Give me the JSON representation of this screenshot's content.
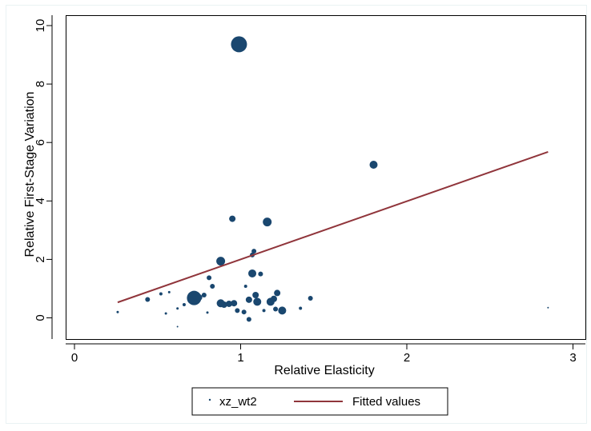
{
  "chart_data": {
    "type": "scatter",
    "xlabel": "Relative Elasticity",
    "ylabel": "Relative First-Stage Variation",
    "xlim": [
      -0.05,
      3.05
    ],
    "ylim": [
      -0.35,
      10.3
    ],
    "xticks": [
      0,
      1,
      2,
      3
    ],
    "yticks": [
      0,
      2,
      4,
      6,
      8,
      10
    ],
    "grid": "horizontal-none",
    "legend_position": "bottom",
    "series": [
      {
        "name": "xz_wt2",
        "kind": "scatter",
        "color": "#1a476f",
        "points": [
          {
            "x": 0.99,
            "y": 9.36,
            "w": 10
          },
          {
            "x": 1.8,
            "y": 5.24,
            "w": 5
          },
          {
            "x": 0.95,
            "y": 3.39,
            "w": 4
          },
          {
            "x": 1.16,
            "y": 3.28,
            "w": 5.5
          },
          {
            "x": 0.88,
            "y": 1.94,
            "w": 5.5
          },
          {
            "x": 1.08,
            "y": 2.28,
            "w": 3
          },
          {
            "x": 1.07,
            "y": 2.15,
            "w": 3
          },
          {
            "x": 1.07,
            "y": 1.52,
            "w": 5
          },
          {
            "x": 1.12,
            "y": 1.5,
            "w": 3
          },
          {
            "x": 0.81,
            "y": 1.37,
            "w": 3
          },
          {
            "x": 0.83,
            "y": 1.08,
            "w": 3
          },
          {
            "x": 1.03,
            "y": 1.08,
            "w": 2
          },
          {
            "x": 0.72,
            "y": 0.68,
            "w": 9
          },
          {
            "x": 0.7,
            "y": 0.6,
            "w": 4
          },
          {
            "x": 0.75,
            "y": 0.7,
            "w": 4
          },
          {
            "x": 0.78,
            "y": 0.78,
            "w": 3
          },
          {
            "x": 0.88,
            "y": 0.5,
            "w": 5
          },
          {
            "x": 0.9,
            "y": 0.45,
            "w": 4
          },
          {
            "x": 0.93,
            "y": 0.48,
            "w": 4
          },
          {
            "x": 0.96,
            "y": 0.5,
            "w": 4
          },
          {
            "x": 1.05,
            "y": 0.62,
            "w": 4
          },
          {
            "x": 1.09,
            "y": 0.78,
            "w": 4
          },
          {
            "x": 1.1,
            "y": 0.55,
            "w": 5
          },
          {
            "x": 1.18,
            "y": 0.55,
            "w": 5
          },
          {
            "x": 1.2,
            "y": 0.65,
            "w": 4
          },
          {
            "x": 1.22,
            "y": 0.85,
            "w": 4
          },
          {
            "x": 1.25,
            "y": 0.25,
            "w": 5
          },
          {
            "x": 1.21,
            "y": 0.3,
            "w": 3
          },
          {
            "x": 1.14,
            "y": 0.25,
            "w": 2
          },
          {
            "x": 0.98,
            "y": 0.25,
            "w": 3
          },
          {
            "x": 1.02,
            "y": 0.2,
            "w": 3
          },
          {
            "x": 1.05,
            "y": -0.05,
            "w": 3
          },
          {
            "x": 1.42,
            "y": 0.67,
            "w": 3
          },
          {
            "x": 1.36,
            "y": 0.33,
            "w": 2
          },
          {
            "x": 0.44,
            "y": 0.63,
            "w": 3
          },
          {
            "x": 0.52,
            "y": 0.82,
            "w": 2
          },
          {
            "x": 0.57,
            "y": 0.88,
            "w": 1.5
          },
          {
            "x": 0.55,
            "y": 0.15,
            "w": 1.5
          },
          {
            "x": 0.62,
            "y": 0.32,
            "w": 1.5
          },
          {
            "x": 0.66,
            "y": 0.45,
            "w": 2
          },
          {
            "x": 0.8,
            "y": 0.18,
            "w": 1.5
          },
          {
            "x": 0.26,
            "y": 0.2,
            "w": 1.5
          },
          {
            "x": 0.62,
            "y": -0.3,
            "w": 1
          },
          {
            "x": 2.85,
            "y": 0.35,
            "w": 1
          }
        ]
      },
      {
        "name": "Fitted values",
        "kind": "line",
        "color": "#90353b",
        "x": [
          0.26,
          2.85
        ],
        "y": [
          0.53,
          5.68
        ]
      }
    ]
  }
}
